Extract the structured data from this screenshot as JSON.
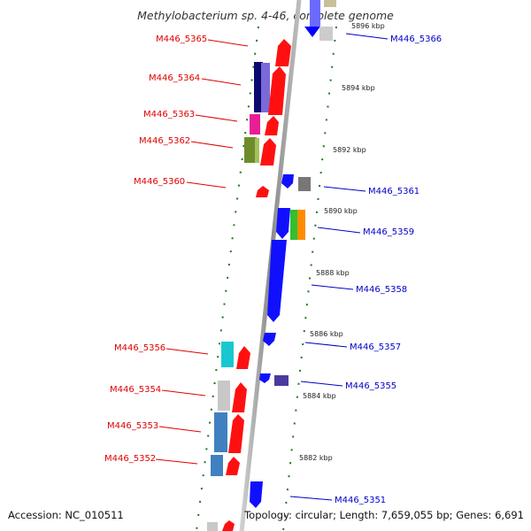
{
  "title": "Methylobacterium sp. 4-46, complete genome",
  "accession_label": "Accession: NC_010511",
  "topology_label": "Topology: circular; Length: 7,659,055 bp; Genes: 6,691",
  "colors": {
    "forward_gene": "#ff0000",
    "reverse_gene": "#0000ff",
    "backbone": "#888888",
    "gc_dots": "#1a7a1a",
    "label_forward": "#e00000",
    "label_reverse": "#0000c8"
  },
  "scale_labels": [
    "5896 kbp",
    "5894 kbp",
    "5892 kbp",
    "5890 kbp",
    "5888 kbp",
    "5886 kbp",
    "5884 kbp",
    "5882 kbp"
  ],
  "forward_genes": [
    {
      "label": "M446_5365"
    },
    {
      "label": "M446_5364"
    },
    {
      "label": "M446_5363"
    },
    {
      "label": "M446_5362"
    },
    {
      "label": "M446_5360"
    },
    {
      "label": "M446_5356"
    },
    {
      "label": "M446_5354"
    },
    {
      "label": "M446_5353"
    },
    {
      "label": "M446_5352"
    }
  ],
  "reverse_genes": [
    {
      "label": "M446_5366"
    },
    {
      "label": "M446_5361"
    },
    {
      "label": "M446_5359"
    },
    {
      "label": "M446_5358"
    },
    {
      "label": "M446_5357"
    },
    {
      "label": "M446_5355"
    },
    {
      "label": "M446_5351"
    }
  ]
}
